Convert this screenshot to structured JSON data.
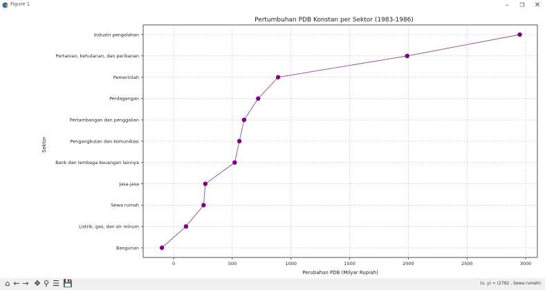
{
  "window": {
    "title": "Figure 1"
  },
  "chart_data": {
    "type": "line",
    "title": "Pertumbuhan PDB Konstan per Sektor (1983-1986)",
    "xlabel": "Perubahan PDB (Milyar Rupiah)",
    "ylabel": "Sektor",
    "xlim": [
      -260,
      3100
    ],
    "x_ticks": [
      0,
      500,
      1000,
      1500,
      2000,
      2500,
      3000
    ],
    "grid": true,
    "line_color": "#9b3f9b",
    "marker_color": "#800080",
    "categories": [
      "Bangunan",
      "Listrik, gas, dan air minum",
      "Sewa rumah",
      "Jasa-jasa",
      "Bank dan lembaga keuangan lainnya",
      "Pengangkutan dan komunikasi",
      "Pertambangan dan penggalian",
      "Perdagangan",
      "Pemerintah",
      "Pertanian, kehutanan, dan perikanan",
      "Industri pengolahan"
    ],
    "values": [
      -100,
      105,
      255,
      270,
      520,
      560,
      600,
      720,
      890,
      1990,
      2950
    ]
  },
  "toolbar": {
    "icons": [
      "home-icon",
      "back-icon",
      "forward-icon",
      "pan-icon",
      "zoom-icon",
      "configure-icon",
      "save-icon"
    ],
    "coordinates": "(x, y) = (2782 , Sewa rumah)"
  }
}
